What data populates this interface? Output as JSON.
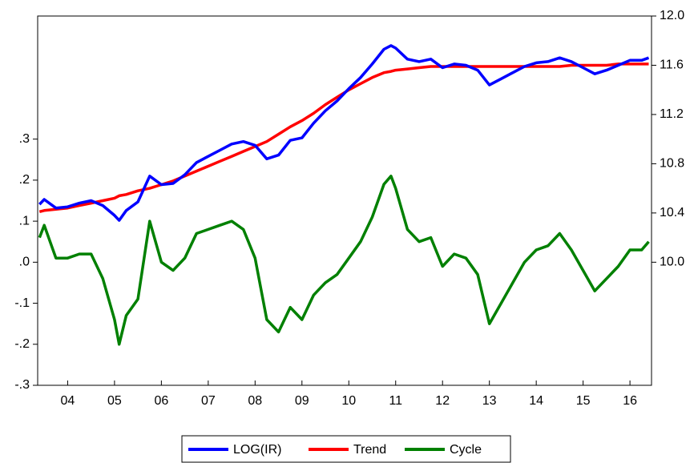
{
  "chart_data": {
    "type": "line",
    "legend": "bottom",
    "x": [
      2003.9,
      2004.0,
      2004.25,
      2004.5,
      2004.75,
      2005.0,
      2005.25,
      2005.5,
      2005.6,
      2005.75,
      2006.0,
      2006.25,
      2006.5,
      2006.75,
      2007.0,
      2007.25,
      2007.5,
      2007.75,
      2008.0,
      2008.25,
      2008.5,
      2008.75,
      2009.0,
      2009.25,
      2009.5,
      2009.75,
      2010.0,
      2010.25,
      2010.5,
      2010.75,
      2011.0,
      2011.25,
      2011.4,
      2011.5,
      2011.75,
      2012.0,
      2012.25,
      2012.5,
      2012.75,
      2013.0,
      2013.25,
      2013.5,
      2013.75,
      2014.0,
      2014.25,
      2014.5,
      2014.75,
      2015.0,
      2015.25,
      2015.5,
      2015.75,
      2016.0,
      2016.25,
      2016.5,
      2016.75,
      2016.9
    ],
    "xlim": [
      2003.86,
      2016.96
    ],
    "xticks": [
      {
        "value": 2004.5,
        "label": "04"
      },
      {
        "value": 2005.5,
        "label": "05"
      },
      {
        "value": 2006.5,
        "label": "06"
      },
      {
        "value": 2007.5,
        "label": "07"
      },
      {
        "value": 2008.5,
        "label": "08"
      },
      {
        "value": 2009.5,
        "label": "09"
      },
      {
        "value": 2010.5,
        "label": "10"
      },
      {
        "value": 2011.5,
        "label": "11"
      },
      {
        "value": 2012.5,
        "label": "12"
      },
      {
        "value": 2013.5,
        "label": "13"
      },
      {
        "value": 2014.5,
        "label": "14"
      },
      {
        "value": 2015.5,
        "label": "15"
      },
      {
        "value": 2016.5,
        "label": "16"
      }
    ],
    "ylim": [
      -0.3,
      0.6
    ],
    "yticks": [
      {
        "value": 0.3,
        "label": ".3"
      },
      {
        "value": 0.2,
        "label": ".2"
      },
      {
        "value": 0.1,
        "label": ".1"
      },
      {
        "value": 0,
        "label": ".0"
      },
      {
        "value": -0.1,
        "label": "-.1"
      },
      {
        "value": -0.2,
        "label": "-.2"
      },
      {
        "value": -0.3,
        "label": "-.3"
      }
    ],
    "y2lim": [
      9.0,
      12.0
    ],
    "y2ticks": [
      {
        "value": 12,
        "label": "12.0"
      },
      11.6,
      11.2,
      10.8,
      10.4,
      {
        "value": 10,
        "label": "10.0"
      }
    ],
    "series": [
      {
        "name": "LOG(IR)",
        "color": "#0000ff",
        "axis": "y2",
        "values": [
          10.47,
          10.51,
          10.44,
          10.45,
          10.48,
          10.5,
          10.46,
          10.38,
          10.34,
          10.42,
          10.49,
          10.7,
          10.63,
          10.64,
          10.71,
          10.81,
          10.86,
          10.91,
          10.96,
          10.98,
          10.95,
          10.84,
          10.87,
          10.99,
          11.01,
          11.13,
          11.23,
          11.31,
          11.41,
          11.5,
          11.61,
          11.73,
          11.76,
          11.74,
          11.65,
          11.63,
          11.65,
          11.58,
          11.61,
          11.6,
          11.56,
          11.44,
          11.49,
          11.54,
          11.59,
          11.62,
          11.63,
          11.66,
          11.63,
          11.58,
          11.53,
          11.56,
          11.6,
          11.64,
          11.64,
          11.66
        ]
      },
      {
        "name": "Trend",
        "color": "#ff0000",
        "axis": "y2",
        "values": [
          10.41,
          10.42,
          10.43,
          10.44,
          10.46,
          10.48,
          10.5,
          10.52,
          10.54,
          10.55,
          10.58,
          10.6,
          10.63,
          10.66,
          10.7,
          10.74,
          10.78,
          10.82,
          10.86,
          10.9,
          10.94,
          10.98,
          11.04,
          11.1,
          11.15,
          11.21,
          11.28,
          11.34,
          11.4,
          11.45,
          11.5,
          11.54,
          11.55,
          11.56,
          11.57,
          11.58,
          11.59,
          11.59,
          11.59,
          11.59,
          11.59,
          11.59,
          11.59,
          11.59,
          11.59,
          11.59,
          11.59,
          11.59,
          11.6,
          11.6,
          11.6,
          11.6,
          11.61,
          11.61,
          11.61,
          11.61
        ]
      },
      {
        "name": "Cycle",
        "color": "#008000",
        "values": [
          0.06,
          0.09,
          0.01,
          0.01,
          0.02,
          0.02,
          -0.04,
          -0.14,
          -0.2,
          -0.13,
          -0.09,
          0.1,
          0,
          -0.02,
          0.01,
          0.07,
          0.08,
          0.09,
          0.1,
          0.08,
          0.01,
          -0.14,
          -0.17,
          -0.11,
          -0.14,
          -0.08,
          -0.05,
          -0.03,
          0.01,
          0.05,
          0.11,
          0.19,
          0.21,
          0.18,
          0.08,
          0.05,
          0.06,
          -0.01,
          0.02,
          0.01,
          -0.03,
          -0.15,
          -0.1,
          -0.05,
          0,
          0.03,
          0.04,
          0.07,
          0.03,
          -0.02,
          -0.07,
          -0.04,
          -0.01,
          0.03,
          0.03,
          0.05
        ]
      }
    ]
  }
}
